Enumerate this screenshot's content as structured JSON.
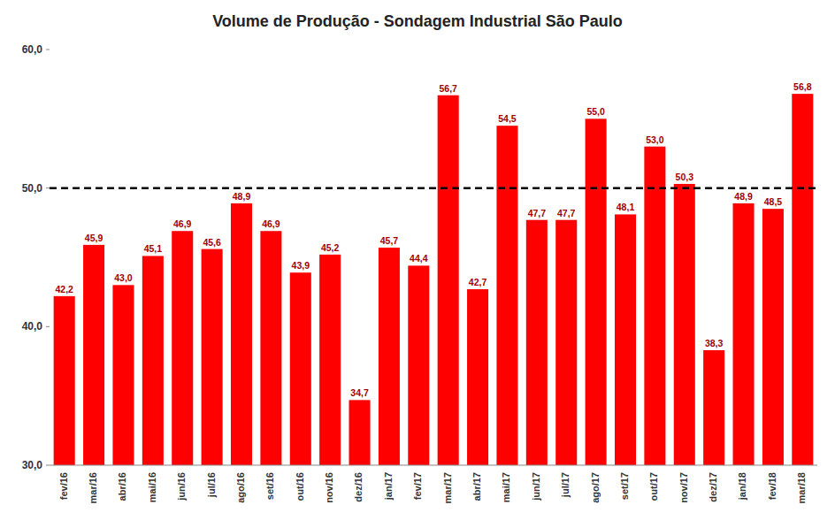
{
  "chart_data": {
    "type": "bar",
    "title": "Volume de Produção - Sondagem Industrial  São Paulo",
    "categories": [
      "fev/16",
      "mar/16",
      "abr/16",
      "mai/16",
      "jun/16",
      "jul/16",
      "ago/16",
      "set/16",
      "out/16",
      "nov/16",
      "dez/16",
      "jan/17",
      "fev/17",
      "mar/17",
      "abr/17",
      "mai/17",
      "jun/17",
      "jul/17",
      "ago/17",
      "set/17",
      "out/17",
      "nov/17",
      "dez/17",
      "jan/18",
      "fev/18",
      "mar/18"
    ],
    "values": [
      42.2,
      45.9,
      43.0,
      45.1,
      46.9,
      45.6,
      48.9,
      46.9,
      43.9,
      45.2,
      34.7,
      45.7,
      44.4,
      56.7,
      42.7,
      54.5,
      47.7,
      47.7,
      55.0,
      48.1,
      53.0,
      50.3,
      38.3,
      48.9,
      48.5,
      56.8
    ],
    "value_labels": [
      "42,2",
      "45,9",
      "43,0",
      "45,1",
      "46,9",
      "45,6",
      "48,9",
      "46,9",
      "43,9",
      "45,2",
      "34,7",
      "45,7",
      "44,4",
      "56,7",
      "42,7",
      "54,5",
      "47,7",
      "47,7",
      "55,0",
      "48,1",
      "53,0",
      "50,3",
      "38,3",
      "48,9",
      "48,5",
      "56,8"
    ],
    "color": "#FF0000",
    "data_labels": true,
    "reference_line": 50.0,
    "ylim": [
      30.0,
      60.0
    ],
    "yticks": [
      {
        "value": 30.0,
        "label": "30,0"
      },
      {
        "value": 40.0,
        "label": "40,0"
      },
      {
        "value": 50.0,
        "label": "50,0"
      },
      {
        "value": 60.0,
        "label": "60,0"
      }
    ],
    "grid": false
  }
}
